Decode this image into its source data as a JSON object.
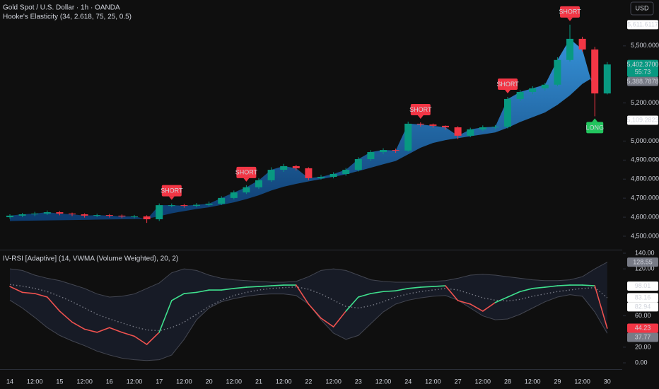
{
  "chart_data": [
    {
      "type": "candlestick",
      "title": "Gold Spot / U.S. Dollar · 1h · OANDA",
      "subtitle": "Hooke's Elasticity (34, 2.618, 75, 25, 0.5)",
      "currency": "USD",
      "categories": [
        "14",
        null,
        "12:00",
        null,
        "15",
        null,
        "12:00",
        null,
        "16",
        null,
        "12:00",
        null,
        "17",
        null,
        "12:00",
        null,
        "20",
        null,
        "12:00",
        null,
        "21",
        null,
        "12:00",
        null,
        "22",
        null,
        "12:00",
        null,
        "23",
        null,
        "12:00",
        null,
        "24",
        null,
        "12:00",
        null,
        "27",
        null,
        "12:00",
        null,
        "28",
        null,
        "12:00",
        null,
        "29",
        null,
        "12:00",
        null,
        "30"
      ],
      "open": [
        4600,
        4608,
        4615,
        4619,
        4626,
        4619,
        4615,
        4608,
        4611,
        4608,
        4604,
        4604,
        4589,
        4663,
        4663,
        4660,
        4665,
        4671,
        4701,
        4730,
        4757,
        4794,
        4849,
        4868,
        4857,
        4805,
        4812,
        4827,
        4849,
        4905,
        4942,
        4953,
        4950,
        5091,
        5087,
        5080,
        5072,
        5028,
        5061,
        5072,
        5075,
        5221,
        5258,
        5277,
        5296,
        5426,
        5537,
        5481,
        5250
      ],
      "high": [
        4615,
        4622,
        4628,
        4635,
        4632,
        4624,
        4620,
        4618,
        4617,
        4614,
        4612,
        4610,
        4672,
        4672,
        4670,
        4674,
        4682,
        4710,
        4740,
        4768,
        4805,
        4862,
        4880,
        4875,
        4862,
        4822,
        4836,
        4858,
        4915,
        4952,
        4962,
        4960,
        5102,
        5098,
        5092,
        5082,
        5078,
        5070,
        5082,
        5084,
        5232,
        5268,
        5288,
        5306,
        5440,
        5611.6117,
        5548,
        5495,
        5415
      ],
      "low": [
        4592,
        4600,
        4606,
        4612,
        4610,
        4606,
        4598,
        4600,
        4598,
        4595,
        4594,
        4570,
        4580,
        4652,
        4650,
        4652,
        4658,
        4664,
        4694,
        4722,
        4748,
        4786,
        4838,
        4846,
        4795,
        4798,
        4804,
        4818,
        4840,
        4896,
        4932,
        4938,
        4944,
        5076,
        5070,
        5060,
        5010,
        5020,
        5052,
        5062,
        5066,
        5210,
        5246,
        5266,
        5288,
        5418,
        5470,
        5130,
        5245
      ],
      "close": [
        4608,
        4615,
        4619,
        4626,
        4619,
        4615,
        4608,
        4611,
        4608,
        4604,
        4604,
        4589,
        4663,
        4663,
        4660,
        4665,
        4671,
        4701,
        4730,
        4757,
        4794,
        4849,
        4868,
        4857,
        4805,
        4812,
        4827,
        4849,
        4905,
        4942,
        4953,
        4950,
        5091,
        5087,
        5080,
        5072,
        5028,
        5061,
        5072,
        5075,
        5221,
        5258,
        5277,
        5296,
        5426,
        5537,
        5481,
        5250,
        5402.37
      ],
      "up_color": "#089981",
      "down_color": "#f23645",
      "band": {
        "color": "#2a86d6",
        "values": [
          4580,
          4581,
          4582,
          4583,
          4584,
          4585,
          4586,
          4587,
          4588,
          4589,
          4590,
          4592,
          4605,
          4620,
          4632,
          4643,
          4652,
          4665,
          4678,
          4695,
          4715,
          4740,
          4760,
          4775,
          4788,
          4800,
          4812,
          4825,
          4842,
          4860,
          4878,
          4895,
          4930,
          4965,
          4990,
          5005,
          5015,
          5025,
          5035,
          5045,
          5070,
          5100,
          5125,
          5150,
          5190,
          5240,
          5300,
          5340,
          null
        ]
      },
      "signals": {
        "short_label": "SHORT",
        "short_color": "#f23645",
        "short_at": [
          13,
          19,
          33,
          40,
          45
        ],
        "long_label": "LONG",
        "long_color": "#22c55e",
        "long_at": [
          47
        ]
      },
      "ylim": [
        4433,
        5741
      ],
      "yticks": [
        {
          "value": 4500,
          "label": "4,500.0000"
        },
        {
          "value": 4600,
          "label": "4,600.0000"
        },
        {
          "value": 4700,
          "label": "4,700.0000"
        },
        {
          "value": 4800,
          "label": "4,800.0000"
        },
        {
          "value": 4900,
          "label": "4,900.0000"
        },
        {
          "value": 5000,
          "label": "5,000.0000"
        },
        {
          "value": 5200,
          "label": "5,200.0000"
        },
        {
          "value": 5500,
          "label": "5,500.0000"
        }
      ],
      "grid": false,
      "price_labels": [
        {
          "value": 5611.6117,
          "label": "5,611.6117",
          "color": "#ffffff",
          "text_color": "#131722"
        },
        {
          "value": 5402.37,
          "label": "5,402.3700",
          "countdown": "55:73",
          "color": "#089981",
          "text_color": "#ffffff"
        },
        {
          "value": 5388.7878,
          "label": "5,388.7878",
          "color": "#787b86",
          "text_color": "#ffffff"
        },
        {
          "value": 5109.2823,
          "label": "5,109.2823",
          "color": "#ffffff",
          "text_color": "#131722"
        }
      ]
    },
    {
      "type": "line",
      "title": "IV-RSI [Adaptive] (14, VWMA (Volume Weighted), 20, 2)",
      "ylim": [
        -6.3,
        142.7
      ],
      "yticks": [
        {
          "value": 0,
          "label": "0.00"
        },
        {
          "value": 20,
          "label": "20.00"
        },
        {
          "value": 60,
          "label": "60.00"
        },
        {
          "value": 120,
          "label": "120.00"
        },
        {
          "value": 140,
          "label": "140.00"
        }
      ],
      "band_fill": "#171b26",
      "series": [
        {
          "color": "#3fe08e",
          "down_color": "#f0524f",
          "values": [
            97.5,
            90,
            88.5,
            84,
            66,
            52,
            43,
            39,
            45,
            39,
            34,
            23.5,
            39,
            79.5,
            88.5,
            90,
            93,
            93,
            95,
            96.6,
            97.5,
            98.4,
            99.3,
            99.3,
            75,
            57,
            46,
            66,
            84,
            88.5,
            91,
            92,
            95,
            96.6,
            97.5,
            98.4,
            79.5,
            75,
            66,
            77,
            84,
            91,
            95,
            96.6,
            98.4,
            99.3,
            99.3,
            98.4,
            44.23
          ]
        },
        {
          "color": "#787b86",
          "dashed": true,
          "values": [
            100,
            98,
            95,
            91,
            85,
            78,
            70,
            62,
            56,
            51,
            46,
            42,
            41,
            45,
            52,
            62,
            72,
            80,
            86,
            90,
            93,
            95,
            96,
            97,
            94,
            88,
            80,
            72,
            70,
            73,
            78,
            84,
            88,
            91,
            93,
            95,
            93,
            88,
            83,
            80,
            79,
            81,
            85,
            88,
            91,
            93,
            95,
            96,
            83.16
          ]
        },
        {
          "color": "#434651",
          "values": [
            120,
            118,
            112,
            108,
            105,
            100,
            95,
            88,
            84,
            85,
            88,
            95,
            102,
            115,
            120,
            118,
            112,
            108,
            106,
            105,
            104,
            103,
            103,
            104,
            110,
            118,
            120,
            118,
            112,
            106,
            104,
            103,
            103,
            103,
            104,
            105,
            108,
            112,
            113,
            112,
            110,
            108,
            106,
            105,
            105,
            106,
            110,
            120,
            128.55
          ]
        },
        {
          "color": "#434651",
          "values": [
            80,
            70,
            58,
            45,
            35,
            28,
            22,
            15,
            10,
            6,
            4,
            3,
            4,
            10,
            30,
            55,
            70,
            78,
            82,
            85,
            87,
            88,
            88,
            86,
            75,
            55,
            38,
            30,
            35,
            50,
            65,
            75,
            80,
            83,
            85,
            86,
            80,
            70,
            60,
            55,
            56,
            62,
            70,
            78,
            84,
            87,
            85,
            65,
            37.77
          ]
        }
      ],
      "value_labels": [
        {
          "value": 128.55,
          "label": "128.55",
          "color": "#787b86",
          "text_color": "#ffffff"
        },
        {
          "value": 98.01,
          "label": "98.01",
          "color": "#ffffff",
          "text_color": "#131722"
        },
        {
          "value": 83.16,
          "label": "83.16",
          "color": "#ffffff",
          "text_color": "#131722"
        },
        {
          "value": 82.94,
          "label": "82.94",
          "color": "#ffffff",
          "text_color": "#131722"
        },
        {
          "value": 44.23,
          "label": "44.23",
          "color": "#f23645",
          "text_color": "#ffffff"
        },
        {
          "value": 37.77,
          "label": "37.77",
          "color": "#787b86",
          "text_color": "#ffffff"
        }
      ]
    }
  ]
}
